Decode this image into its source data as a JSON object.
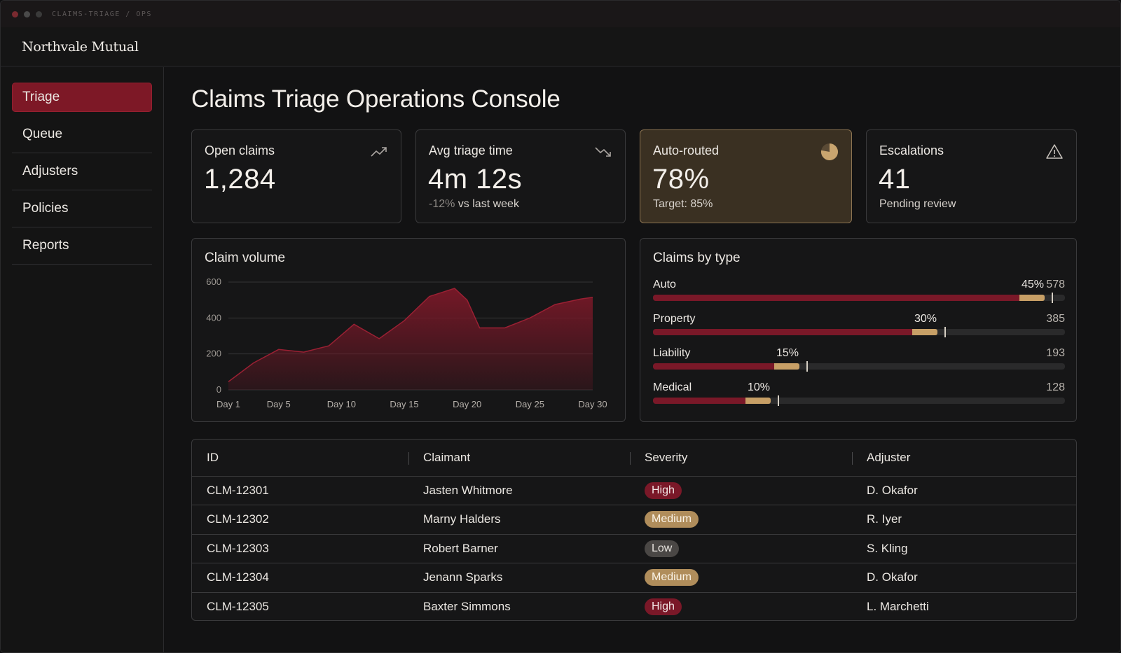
{
  "window": {
    "path": "CLAIMS-TRIAGE / OPS"
  },
  "brand": "Northvale Mutual",
  "sidebar": {
    "items": [
      {
        "label": "Triage",
        "active": true
      },
      {
        "label": "Queue"
      },
      {
        "label": "Adjusters"
      },
      {
        "label": "Policies"
      },
      {
        "label": "Reports"
      }
    ]
  },
  "page": {
    "title": "Claims Triage Operations Console"
  },
  "kpis": {
    "open_claims": {
      "label": "Open claims",
      "value": "1,284",
      "icon": "trending-up-icon"
    },
    "avg_triage": {
      "label": "Avg triage time",
      "value": "4m 12s",
      "delta": "-12%",
      "delta_suffix": " vs last week",
      "icon": "trending-down-icon"
    },
    "auto_routed": {
      "label": "Auto-routed",
      "value": "78%",
      "sub": "Target: 85%",
      "icon": "pie-icon",
      "fraction": 0.78
    },
    "escalations": {
      "label": "Escalations",
      "value": "41",
      "sub": "Pending review",
      "icon": "warning-icon"
    }
  },
  "volume_panel": {
    "title": "Claim volume"
  },
  "chart_data": {
    "type": "area",
    "title": "Claim volume",
    "x": [
      1,
      3,
      5,
      7,
      9,
      11,
      13,
      15,
      17,
      19,
      20,
      21,
      23,
      25,
      27,
      29,
      30
    ],
    "values": [
      45,
      150,
      225,
      210,
      245,
      365,
      285,
      385,
      520,
      565,
      500,
      345,
      345,
      400,
      475,
      505,
      515
    ],
    "xticks": [
      "Day 1",
      "Day 5",
      "Day 10",
      "Day 15",
      "Day 20",
      "Day 25",
      "Day 30"
    ],
    "xtick_positions": [
      1,
      5,
      10,
      15,
      20,
      25,
      30
    ],
    "yticks": [
      "0",
      "200",
      "400",
      "600"
    ],
    "ylim": [
      0,
      600
    ],
    "grid": true,
    "colors": {
      "fill": "#7a1828",
      "line": "#9a2033",
      "grid": "#343436"
    }
  },
  "types_panel": {
    "title": "Claims by type",
    "rows": [
      {
        "label": "Auto",
        "pct": "45%",
        "count": "578",
        "share": 0.45,
        "target": 0.95
      },
      {
        "label": "Property",
        "pct": "30%",
        "count": "385",
        "share": 0.3,
        "target": 0.69
      },
      {
        "label": "Liability",
        "pct": "15%",
        "count": "193",
        "share": 0.15,
        "target": 0.355
      },
      {
        "label": "Medical",
        "pct": "10%",
        "count": "128",
        "share": 0.1,
        "target": 0.285
      }
    ],
    "colors": {
      "fill": "#7a1828",
      "cap": "#c79f66",
      "track": "#2a2a2b"
    }
  },
  "table": {
    "headers": [
      "ID",
      "Claimant",
      "Severity",
      "Adjuster"
    ],
    "rows": [
      {
        "id": "CLM-12301",
        "claimant": "Jasten Whitmore",
        "severity": "High",
        "adjuster": "D. Okafor"
      },
      {
        "id": "CLM-12302",
        "claimant": "Marny Halders",
        "severity": "Medium",
        "adjuster": "R. Iyer"
      },
      {
        "id": "CLM-12303",
        "claimant": "Robert Barner",
        "severity": "Low",
        "adjuster": "S. Kling"
      },
      {
        "id": "CLM-12304",
        "claimant": "Jenann Sparks",
        "severity": "Medium",
        "adjuster": "D. Okafor"
      },
      {
        "id": "CLM-12305",
        "claimant": "Baxter Simmons",
        "severity": "High",
        "adjuster": "L. Marchetti"
      }
    ]
  }
}
